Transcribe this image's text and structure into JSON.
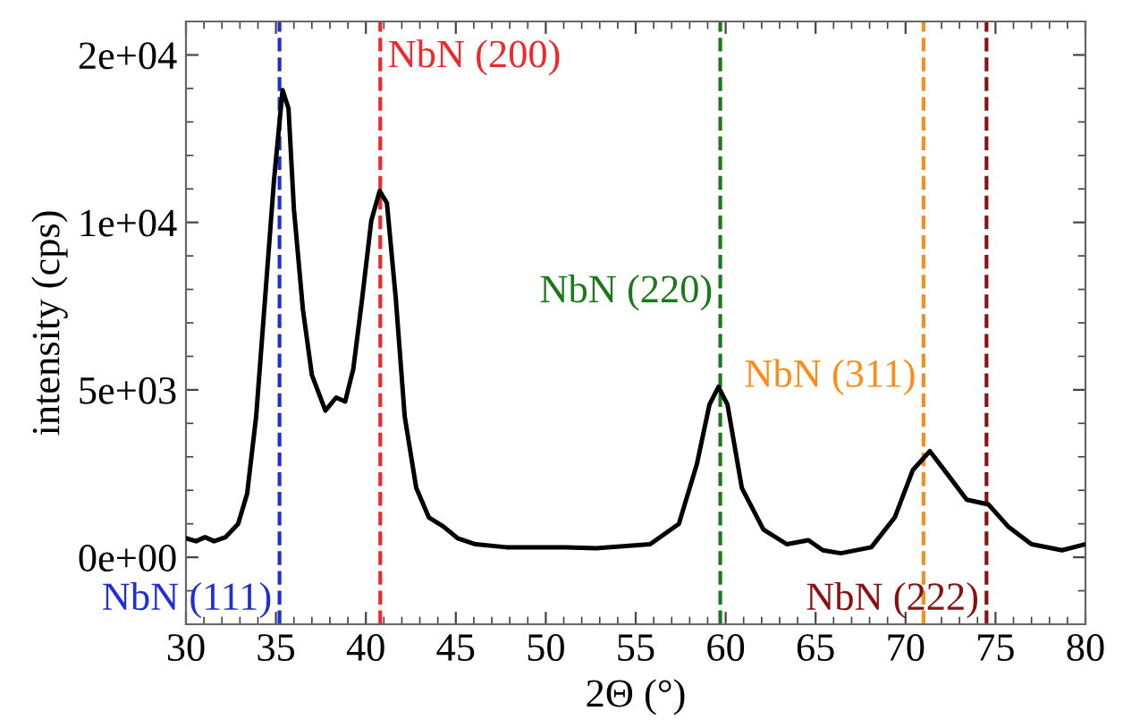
{
  "chart_data": {
    "type": "line",
    "xlabel": "2Θ (°)",
    "ylabel": "intensity (cps)",
    "xlim": [
      30,
      80
    ],
    "xticks": [
      30,
      35,
      40,
      45,
      50,
      55,
      60,
      65,
      70,
      75,
      80
    ],
    "ylim": [
      -2000,
      16000
    ],
    "yticks": [
      {
        "value": 0,
        "label": "0e+00"
      },
      {
        "value": 5000,
        "label": "5e+03"
      },
      {
        "value": 10000,
        "label": "1e+04"
      },
      {
        "value": 15000,
        "label": "2e+04"
      }
    ],
    "grid": false,
    "legend": false,
    "marker": "none",
    "line_style": "solid",
    "series": [
      {
        "color": "#000000",
        "x": [
          30,
          30.56,
          31.06,
          31.56,
          32.2,
          32.9,
          33.4,
          33.9,
          34.4,
          34.9,
          35.37,
          35.7,
          36.0,
          36.5,
          37.0,
          37.75,
          38.35,
          38.85,
          39.3,
          39.8,
          40.3,
          40.77,
          41.17,
          41.66,
          42.16,
          42.8,
          43.5,
          44.3,
          45.1,
          46.1,
          47.8,
          49.45,
          51.1,
          52.8,
          55.8,
          57.4,
          58.4,
          59.1,
          59.6,
          60.1,
          60.9,
          62.1,
          63.4,
          64.6,
          65.4,
          66.4,
          68.1,
          69.4,
          70.4,
          71.35,
          72.4,
          73.4,
          74.6,
          75.7,
          77.0,
          78.7,
          80
        ],
        "values": [
          570,
          480,
          600,
          480,
          600,
          1000,
          1900,
          4200,
          7750,
          11300,
          13950,
          13400,
          10400,
          7400,
          5440,
          4380,
          4770,
          4650,
          5620,
          7750,
          10050,
          10940,
          10580,
          7750,
          4200,
          2070,
          1190,
          920,
          570,
          390,
          300,
          300,
          300,
          270,
          390,
          1000,
          2780,
          4560,
          5090,
          4560,
          2070,
          830,
          390,
          510,
          210,
          120,
          300,
          1190,
          2600,
          3170,
          2430,
          1720,
          1580,
          920,
          390,
          210,
          390
        ]
      }
    ],
    "ref_lines": [
      {
        "axis": "x",
        "value": 35.2,
        "label": "NbN (111)",
        "color": "#1f2fd8",
        "line_style": "dashed"
      },
      {
        "axis": "x",
        "value": 40.8,
        "label": "NbN (200)",
        "color": "#f0282a",
        "line_style": "dashed"
      },
      {
        "axis": "x",
        "value": 59.7,
        "label": "NbN (220)",
        "color": "#1a7a1a",
        "line_style": "dashed"
      },
      {
        "axis": "x",
        "value": 71.0,
        "label": "NbN (311)",
        "color": "#ff8c1a",
        "line_style": "dashed"
      },
      {
        "axis": "x",
        "value": 74.5,
        "label": "NbN (222)",
        "color": "#8b1010",
        "line_style": "dashed"
      }
    ]
  }
}
